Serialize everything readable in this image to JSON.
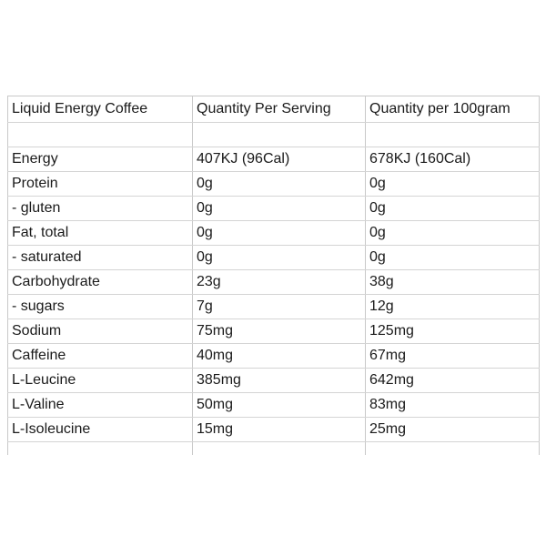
{
  "table": {
    "headers": [
      "Liquid Energy Coffee",
      "Quantity Per Serving",
      "Quantity per 100gram"
    ],
    "rows": [
      [
        "Energy",
        "407KJ (96Cal)",
        "678KJ (160Cal)"
      ],
      [
        "Protein",
        "0g",
        "0g"
      ],
      [
        "- gluten",
        "0g",
        "0g"
      ],
      [
        "Fat, total",
        "0g",
        "0g"
      ],
      [
        "- saturated",
        "0g",
        "0g"
      ],
      [
        "Carbohydrate",
        "23g",
        "38g"
      ],
      [
        "- sugars",
        "7g",
        "12g"
      ],
      [
        "Sodium",
        "75mg",
        "125mg"
      ],
      [
        "Caffeine",
        "40mg",
        "67mg"
      ],
      [
        "L-Leucine",
        "385mg",
        "642mg"
      ],
      [
        "L-Valine",
        "50mg",
        "83mg"
      ],
      [
        "L-Isoleucine",
        "15mg",
        "25mg"
      ]
    ]
  },
  "colors": {
    "gridline": "#c9c9c9",
    "text": "#1a1a1a",
    "background": "#ffffff"
  }
}
